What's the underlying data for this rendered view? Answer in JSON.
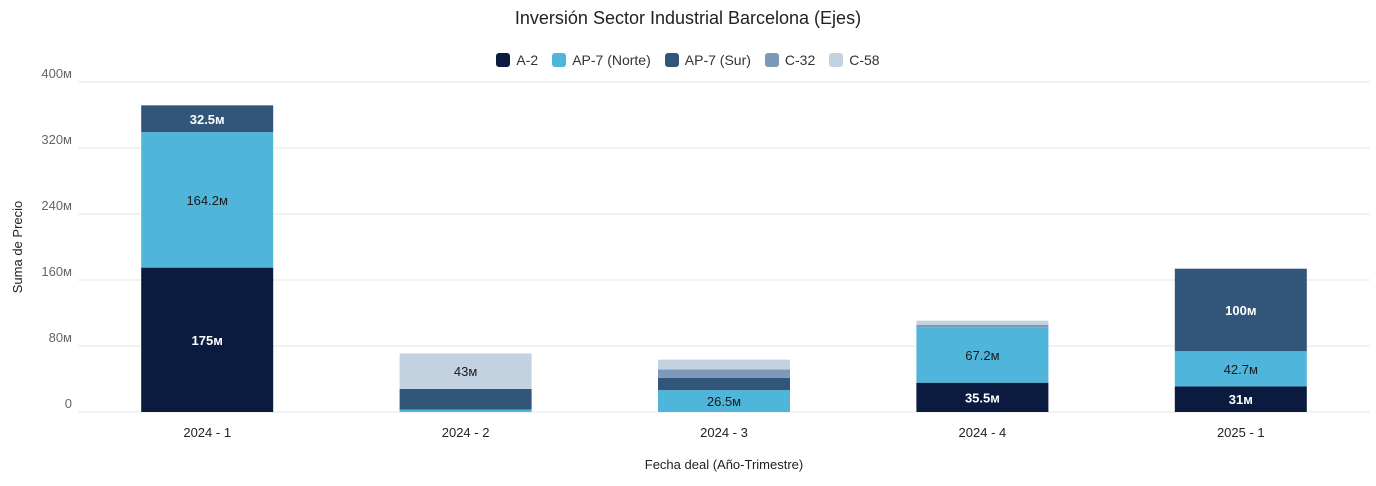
{
  "chart_data": {
    "type": "bar",
    "stacked": true,
    "title": "Inversión Sector Industrial Barcelona (Ejes)",
    "xlabel": "Fecha deal (Año-Trimestre)",
    "ylabel": "Suma de Precio",
    "ylim": [
      0,
      400000000
    ],
    "y_tick_values": [
      0,
      80000000,
      160000000,
      240000000,
      320000000,
      400000000
    ],
    "y_tick_labels": [
      "0",
      "80м",
      "160м",
      "240м",
      "320м",
      "400м"
    ],
    "categories": [
      "2024 - 1",
      "2024 - 2",
      "2024 - 3",
      "2024 - 4",
      "2025 - 1"
    ],
    "grid": true,
    "legend_position": "top-center",
    "series": [
      {
        "name": "A-2",
        "color": "#0b1b3f",
        "values": [
          175000000,
          0,
          0,
          35500000,
          31000000
        ],
        "labels": [
          "175м",
          "",
          "",
          "35.5м",
          "31м"
        ],
        "label_color": "#ffffff"
      },
      {
        "name": "AP-7 (Norte)",
        "color": "#50b5da",
        "values": [
          164200000,
          3000000,
          26500000,
          67200000,
          42700000
        ],
        "labels": [
          "164.2м",
          "",
          "26.5м",
          "67.2м",
          "42.7м"
        ],
        "label_color": "#1a1a1a"
      },
      {
        "name": "AP-7 (Sur)",
        "color": "#31567a",
        "values": [
          32500000,
          25000000,
          15000000,
          0,
          100000000
        ],
        "labels": [
          "32.5м",
          "",
          "",
          "",
          "100м"
        ],
        "label_color": "#ffffff"
      },
      {
        "name": "C-32",
        "color": "#7c99b9",
        "values": [
          0,
          0,
          10000000,
          3000000,
          0
        ],
        "labels": [
          "",
          "",
          "",
          "",
          ""
        ],
        "label_color": "#ffffff"
      },
      {
        "name": "C-58",
        "color": "#c3d2e0",
        "values": [
          0,
          43000000,
          12000000,
          5000000,
          0
        ],
        "labels": [
          "",
          "43м",
          "",
          "",
          ""
        ],
        "label_color": "#1a1a1a"
      }
    ]
  }
}
